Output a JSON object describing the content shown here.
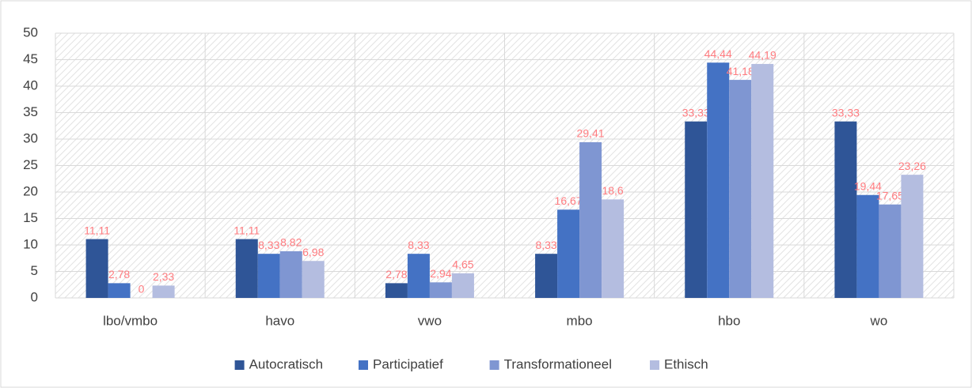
{
  "chart_data": {
    "type": "bar",
    "categories": [
      "lbo/vmbo",
      "havo",
      "vwo",
      "mbo",
      "hbo",
      "wo"
    ],
    "series": [
      {
        "name": "Autocratisch",
        "color": "#2f5597",
        "values": [
          11.11,
          11.11,
          2.78,
          8.33,
          33.33,
          33.33
        ],
        "value_labels": [
          "11,11",
          "11,11",
          "2,78",
          "8,33",
          "33,33",
          "33,33"
        ]
      },
      {
        "name": "Participatief",
        "color": "#4472c4",
        "values": [
          2.78,
          8.33,
          8.33,
          16.67,
          44.44,
          19.44
        ],
        "value_labels": [
          "2,78",
          "8,33",
          "8,33",
          "16,67",
          "44,44",
          "19,44"
        ]
      },
      {
        "name": "Transformationeel",
        "color": "#7f96d2",
        "values": [
          0,
          8.82,
          2.94,
          29.41,
          41.18,
          17.65
        ],
        "value_labels": [
          "0",
          "8,82",
          "2,94",
          "29,41",
          "41,18",
          "17,65"
        ]
      },
      {
        "name": "Ethisch",
        "color": "#b4bde0",
        "values": [
          2.33,
          6.98,
          4.65,
          18.6,
          44.19,
          23.26
        ],
        "value_labels": [
          "2,33",
          "6,98",
          "4,65",
          "18,6",
          "44,19",
          "23,26"
        ]
      }
    ],
    "ylim": [
      0,
      50
    ],
    "yticks": [
      0,
      5,
      10,
      15,
      20,
      25,
      30,
      35,
      40,
      45,
      50
    ],
    "grid": true,
    "legend": "bottom"
  }
}
